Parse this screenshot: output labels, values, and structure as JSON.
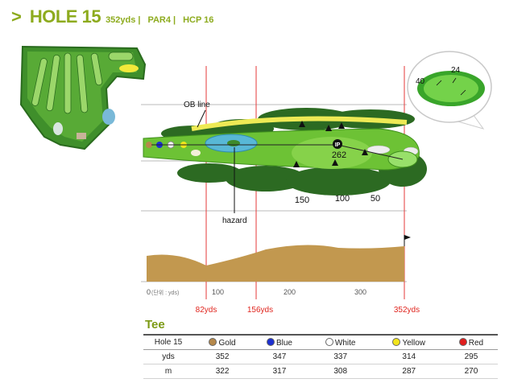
{
  "header": {
    "chevron": ">",
    "hole_title": "HOLE 15",
    "yardage": "352yds",
    "par": "PAR4",
    "handicap": "HCP 16",
    "separator": "|"
  },
  "diagram": {
    "ob_label": "OB line",
    "hazard_label": "hazard",
    "ip_label": "IP",
    "ip_distance": "262",
    "marker_150": "150",
    "marker_100": "100",
    "marker_50": "50",
    "green_left": "40",
    "green_top": "24",
    "axis_ticks": [
      "0",
      "100",
      "200",
      "300"
    ],
    "unit_label": "(단위 : yds)",
    "dist_82": "82yds",
    "dist_156": "156yds",
    "dist_352": "352yds"
  },
  "tee": {
    "title": "Tee",
    "colors": {
      "gold": "#b5884b",
      "blue": "#1c2fd0",
      "white": "#ffffff",
      "yellow": "#f2e51c",
      "red": "#e01e1e"
    },
    "header": {
      "hole": "Hole 15",
      "cols": [
        "Gold",
        "Blue",
        "White",
        "Yellow",
        "Red"
      ]
    },
    "yds": {
      "label": "yds",
      "values": [
        "352",
        "347",
        "337",
        "314",
        "295"
      ]
    },
    "m": {
      "label": "m",
      "values": [
        "322",
        "317",
        "308",
        "287",
        "270"
      ]
    }
  }
}
